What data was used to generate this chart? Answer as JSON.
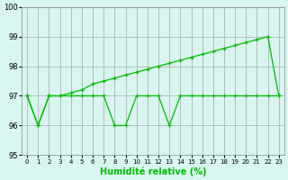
{
  "x": [
    0,
    1,
    2,
    3,
    4,
    5,
    6,
    7,
    8,
    9,
    10,
    11,
    12,
    13,
    14,
    15,
    16,
    17,
    18,
    19,
    20,
    21,
    22,
    23
  ],
  "y_spiky": [
    97,
    96,
    97,
    97,
    97,
    97,
    97,
    97,
    96,
    96,
    97,
    97,
    97,
    96,
    97,
    97,
    97,
    97,
    97,
    97,
    97,
    97,
    97,
    97
  ],
  "y_trend": [
    97,
    96,
    97,
    97,
    97.1,
    97.2,
    97.4,
    97.5,
    97.6,
    97.7,
    97.8,
    97.9,
    98.0,
    98.1,
    98.2,
    98.3,
    98.4,
    98.5,
    98.6,
    98.7,
    98.8,
    98.9,
    99.0,
    97
  ],
  "xlabel": "Humidité relative (%)",
  "ylim": [
    95,
    100
  ],
  "xlim": [
    -0.5,
    23.5
  ],
  "yticks": [
    95,
    96,
    97,
    98,
    99,
    100
  ],
  "xticks": [
    0,
    1,
    2,
    3,
    4,
    5,
    6,
    7,
    8,
    9,
    10,
    11,
    12,
    13,
    14,
    15,
    16,
    17,
    18,
    19,
    20,
    21,
    22,
    23
  ],
  "line_color": "#00bb00",
  "bg_color": "#d8f5f0",
  "grid_color": "#aaaaaa",
  "marker": "+"
}
